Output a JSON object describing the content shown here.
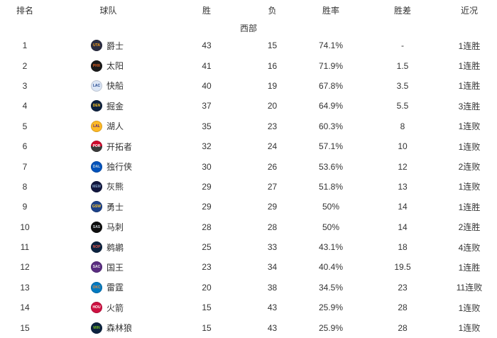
{
  "headers": [
    "排名",
    "球队",
    "胜",
    "负",
    "胜率",
    "胜差",
    "近况"
  ],
  "conference": "西部",
  "rows": [
    {
      "rank": "1",
      "name": "爵士",
      "abbr": "UTA",
      "logo_bg": "#2b2d42",
      "logo_fg": "#f9a01b",
      "wins": "43",
      "losses": "15",
      "pct": "74.1%",
      "gb": "-",
      "streak": "1连胜"
    },
    {
      "rank": "2",
      "name": "太阳",
      "abbr": "PHX",
      "logo_bg": "#1a1a1a",
      "logo_fg": "#e56020",
      "wins": "41",
      "losses": "16",
      "pct": "71.9%",
      "gb": "1.5",
      "streak": "1连胜"
    },
    {
      "rank": "3",
      "name": "快船",
      "abbr": "LAC",
      "logo_bg": "#dce6f5",
      "logo_fg": "#1d428a",
      "wins": "40",
      "losses": "19",
      "pct": "67.8%",
      "gb": "3.5",
      "streak": "1连胜"
    },
    {
      "rank": "4",
      "name": "掘金",
      "abbr": "DEN",
      "logo_bg": "#0e2240",
      "logo_fg": "#fec524",
      "wins": "37",
      "losses": "20",
      "pct": "64.9%",
      "gb": "5.5",
      "streak": "3连胜"
    },
    {
      "rank": "5",
      "name": "湖人",
      "abbr": "LAL",
      "logo_bg": "#fdb927",
      "logo_fg": "#552583",
      "wins": "35",
      "losses": "23",
      "pct": "60.3%",
      "gb": "8",
      "streak": "1连败"
    },
    {
      "rank": "6",
      "name": "开拓者",
      "abbr": "POR",
      "logo_bg": "linear-gradient(180deg,#cf0a2c 50%,#3a3a3a 50%)",
      "logo_fg": "#ffffff",
      "wins": "32",
      "losses": "24",
      "pct": "57.1%",
      "gb": "10",
      "streak": "1连败"
    },
    {
      "rank": "7",
      "name": "独行侠",
      "abbr": "DAL",
      "logo_bg": "#0053bc",
      "logo_fg": "#c9d4da",
      "wins": "30",
      "losses": "26",
      "pct": "53.6%",
      "gb": "12",
      "streak": "2连败"
    },
    {
      "rank": "8",
      "name": "灰熊",
      "abbr": "MEM",
      "logo_bg": "#12173f",
      "logo_fg": "#7d9bc1",
      "wins": "29",
      "losses": "27",
      "pct": "51.8%",
      "gb": "13",
      "streak": "1连败"
    },
    {
      "rank": "9",
      "name": "勇士",
      "abbr": "GSW",
      "logo_bg": "#1d428a",
      "logo_fg": "#ffc72c",
      "wins": "29",
      "losses": "29",
      "pct": "50%",
      "gb": "14",
      "streak": "1连胜"
    },
    {
      "rank": "10",
      "name": "马刺",
      "abbr": "SAS",
      "logo_bg": "#0f0f0f",
      "logo_fg": "#c4ced4",
      "wins": "28",
      "losses": "28",
      "pct": "50%",
      "gb": "14",
      "streak": "2连胜"
    },
    {
      "rank": "11",
      "name": "鹈鹕",
      "abbr": "NOP",
      "logo_bg": "#0c2340",
      "logo_fg": "#e3574a",
      "wins": "25",
      "losses": "33",
      "pct": "43.1%",
      "gb": "18",
      "streak": "4连败"
    },
    {
      "rank": "12",
      "name": "国王",
      "abbr": "SAC",
      "logo_bg": "#5a2d81",
      "logo_fg": "#e6e7e8",
      "wins": "23",
      "losses": "34",
      "pct": "40.4%",
      "gb": "19.5",
      "streak": "1连胜"
    },
    {
      "rank": "13",
      "name": "雷霆",
      "abbr": "OKC",
      "logo_bg": "#007ac1",
      "logo_fg": "#ef8b3b",
      "wins": "20",
      "losses": "38",
      "pct": "34.5%",
      "gb": "23",
      "streak": "11连败"
    },
    {
      "rank": "14",
      "name": "火箭",
      "abbr": "HOU",
      "logo_bg": "#ce1141",
      "logo_fg": "#ffffff",
      "wins": "15",
      "losses": "43",
      "pct": "25.9%",
      "gb": "28",
      "streak": "1连败"
    },
    {
      "rank": "15",
      "name": "森林狼",
      "abbr": "MIN",
      "logo_bg": "#0c2340",
      "logo_fg": "#78be20",
      "wins": "15",
      "losses": "43",
      "pct": "25.9%",
      "gb": "28",
      "streak": "1连败"
    }
  ],
  "colors": {
    "text": "#333333",
    "background": "#ffffff"
  }
}
